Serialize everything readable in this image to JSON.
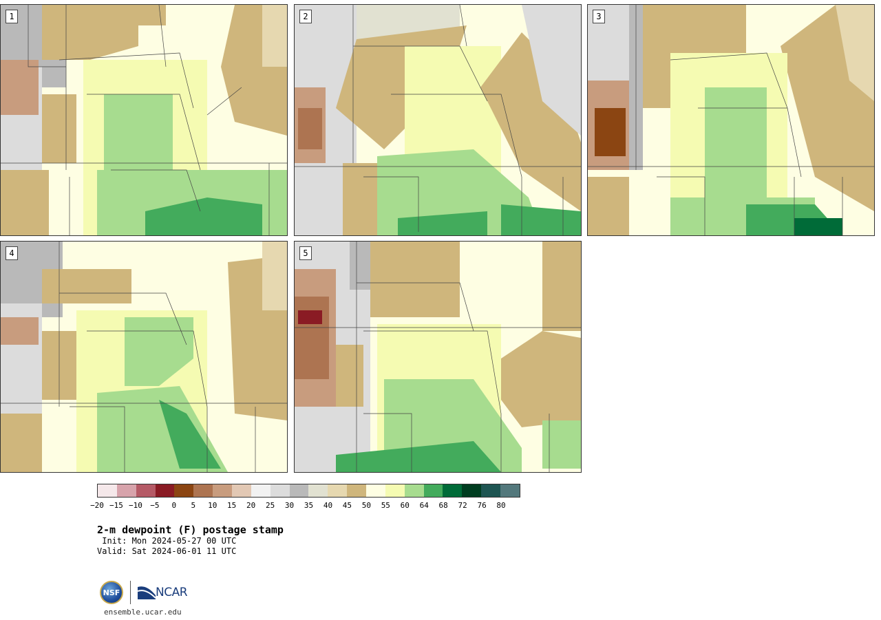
{
  "panels": [
    {
      "label": "1"
    },
    {
      "label": "2"
    },
    {
      "label": "3"
    },
    {
      "label": "4"
    },
    {
      "label": "5"
    }
  ],
  "colorbar": {
    "colors": [
      "#f5e8ea",
      "#d7a3ab",
      "#b55a66",
      "#8a1b24",
      "#8b4512",
      "#ad7451",
      "#c89c7e",
      "#e2c8b4",
      "#f2f2f2",
      "#dcdcdc",
      "#b9b9b9",
      "#e1e1d1",
      "#e6d8b0",
      "#cfb67c",
      "#fefee3",
      "#f5fbb2",
      "#a7dc8f",
      "#43ab5c",
      "#006b38",
      "#003d20",
      "#1e5552",
      "#53787c"
    ],
    "ticks": [
      "−20",
      "−15",
      "−10",
      "−5",
      "0",
      "5",
      "10",
      "15",
      "20",
      "25",
      "30",
      "35",
      "40",
      "45",
      "50",
      "55",
      "60",
      "64",
      "68",
      "72",
      "76",
      "80"
    ]
  },
  "title": "2-m dewpoint (F) postage stamp",
  "init": " Init: Mon 2024-05-27 00 UTC",
  "valid": "Valid: Sat 2024-06-01 11 UTC",
  "logo": {
    "seal_text": "NSF",
    "org": "NCAR",
    "icon": "ncar-logo"
  },
  "url": "ensemble.ucar.edu"
}
